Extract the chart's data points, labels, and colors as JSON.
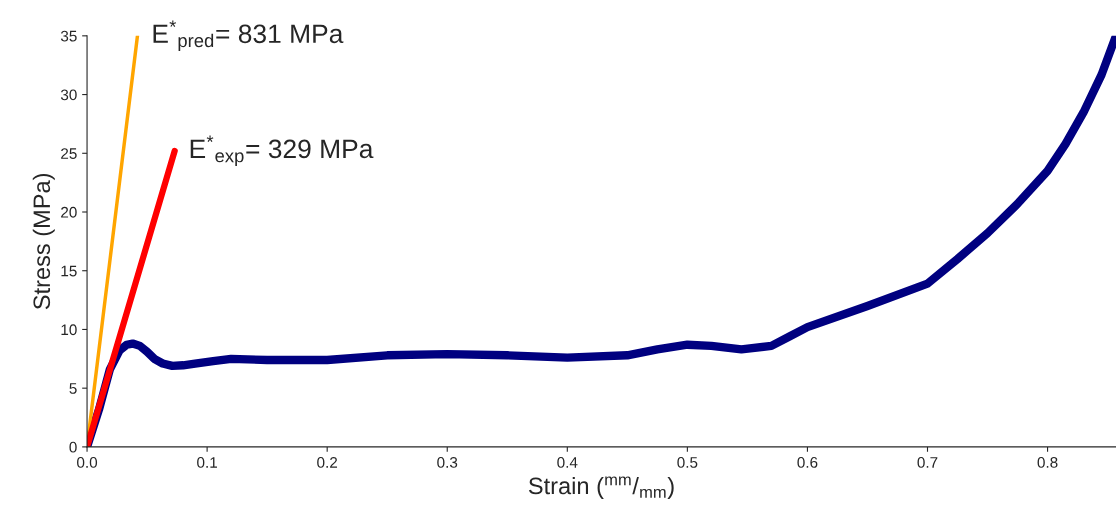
{
  "chart_data": {
    "type": "line",
    "xlabel": "Strain ($^{mm}$/$_{mm}$)",
    "ylabel": "Stress (MPa)",
    "xlim": [
      0,
      0.857
    ],
    "ylim": [
      0,
      35
    ],
    "xticks": [
      {
        "value": 0,
        "label": "0.0"
      },
      0.1,
      0.2,
      0.3,
      0.4,
      0.5,
      0.6,
      0.7,
      0.8
    ],
    "yticks": [
      0,
      5,
      10,
      15,
      20,
      25,
      30,
      35
    ],
    "grid": false,
    "legend": false,
    "marker": "none",
    "line_style": "solid",
    "series": [
      {
        "color": "#000080",
        "x": [
          0,
          0.01,
          0.019,
          0.027,
          0.033,
          0.038,
          0.044,
          0.05,
          0.056,
          0.063,
          0.071,
          0.08,
          0.09,
          0.105,
          0.12,
          0.15,
          0.2,
          0.25,
          0.3,
          0.35,
          0.4,
          0.45,
          0.475,
          0.5,
          0.52,
          0.545,
          0.57,
          0.585,
          0.6,
          0.65,
          0.7,
          0.725,
          0.75,
          0.775,
          0.8,
          0.815,
          0.83,
          0.845,
          0.857
        ],
        "values": [
          0,
          3.2,
          6.6,
          8.2,
          8.7,
          8.8,
          8.6,
          8.1,
          7.5,
          7.1,
          6.9,
          6.95,
          7.1,
          7.3,
          7.5,
          7.4,
          7.4,
          7.8,
          7.9,
          7.8,
          7.6,
          7.8,
          8.3,
          8.7,
          8.6,
          8.3,
          8.6,
          9.4,
          10.2,
          12.0,
          13.9,
          16.0,
          18.2,
          20.7,
          23.5,
          25.8,
          28.5,
          31.7,
          35
        ]
      },
      {
        "color": "#ffa500",
        "x": [
          0,
          0.042
        ],
        "values": [
          0,
          35
        ]
      },
      {
        "color": "#ff0000",
        "x": [
          0,
          0.073
        ],
        "values": [
          0,
          25.2
        ]
      }
    ],
    "annotations": [
      {
        "text": "E$^{*}$$_{pred}$= 831 MPa",
        "x": 0.042,
        "y": 35
      },
      {
        "text": "E$^{*}$$_{exp}$= 329 MPa",
        "x": 0.073,
        "y": 25.2
      }
    ]
  }
}
